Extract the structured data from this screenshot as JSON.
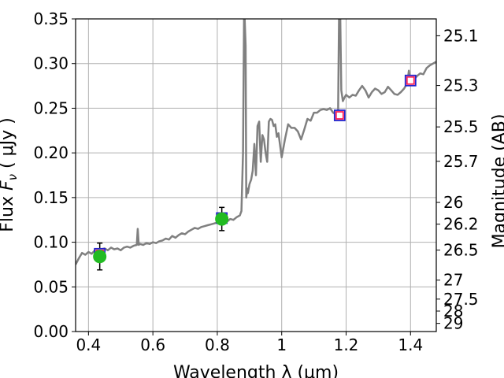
{
  "chart_data": {
    "type": "line",
    "title": "",
    "xlabel": "Wavelength  λ (μm)",
    "ylabel": "Flux  F_ν  ( μJy )",
    "ylabel_parts": {
      "prefix": "Flux  ",
      "symbol": "F",
      "subscript": "ν",
      "unit": "  ( μJy )"
    },
    "y2label": "Magnitude (AB)",
    "xlim": [
      0.36,
      1.48
    ],
    "ylim": [
      0.0,
      0.35
    ],
    "grid": true,
    "legend": "none",
    "x_ticks": [
      {
        "value": 0.4,
        "label": "0.4"
      },
      {
        "value": 0.6,
        "label": "0.6"
      },
      {
        "value": 0.8,
        "label": "0.8"
      },
      {
        "value": 1.0,
        "label": "1"
      },
      {
        "value": 1.2,
        "label": "1.2"
      },
      {
        "value": 1.4,
        "label": "1.4"
      }
    ],
    "y_ticks": [
      {
        "value": 0.0,
        "label": "0.00"
      },
      {
        "value": 0.05,
        "label": "0.05"
      },
      {
        "value": 0.1,
        "label": "0.10"
      },
      {
        "value": 0.15,
        "label": "0.15"
      },
      {
        "value": 0.2,
        "label": "0.20"
      },
      {
        "value": 0.25,
        "label": "0.25"
      },
      {
        "value": 0.3,
        "label": "0.30"
      },
      {
        "value": 0.35,
        "label": "0.35"
      }
    ],
    "y2_ticks": [
      {
        "mag": 25.1,
        "label": "25.1"
      },
      {
        "mag": 25.3,
        "label": "25.3"
      },
      {
        "mag": 25.5,
        "label": "25.5"
      },
      {
        "mag": 25.7,
        "label": "25.7"
      },
      {
        "mag": 26.0,
        "label": "26"
      },
      {
        "mag": 26.2,
        "label": "26.2"
      },
      {
        "mag": 26.5,
        "label": "26.5"
      },
      {
        "mag": 27.0,
        "label": "27"
      },
      {
        "mag": 27.5,
        "label": "27.5"
      },
      {
        "mag": 28.0,
        "label": "28"
      },
      {
        "mag": 29.0,
        "label": "29"
      }
    ],
    "colors": {
      "model": "#808080",
      "observed_fill": "#22bb22",
      "observed_edge": "#2222cc",
      "model_box_edge": "#2222cc",
      "model_box_inner": "#ff2255",
      "errorbar": "#000000",
      "grid": "#b0b0b0"
    },
    "series": [
      {
        "kind": "model_spectrum",
        "x": [
          0.36,
          0.37,
          0.38,
          0.39,
          0.4,
          0.41,
          0.42,
          0.43,
          0.44,
          0.45,
          0.46,
          0.47,
          0.48,
          0.49,
          0.5,
          0.51,
          0.52,
          0.53,
          0.54,
          0.55,
          0.553,
          0.556,
          0.56,
          0.57,
          0.58,
          0.59,
          0.6,
          0.61,
          0.62,
          0.63,
          0.64,
          0.65,
          0.66,
          0.67,
          0.68,
          0.69,
          0.7,
          0.71,
          0.72,
          0.73,
          0.74,
          0.75,
          0.76,
          0.77,
          0.78,
          0.79,
          0.8,
          0.81,
          0.82,
          0.83,
          0.84,
          0.85,
          0.86,
          0.87,
          0.875,
          0.88,
          0.883,
          0.885,
          0.888,
          0.89,
          0.893,
          0.895,
          0.9,
          0.905,
          0.91,
          0.915,
          0.92,
          0.925,
          0.93,
          0.935,
          0.94,
          0.945,
          0.95,
          0.955,
          0.96,
          0.965,
          0.97,
          0.975,
          0.98,
          0.985,
          0.99,
          1.0,
          1.01,
          1.02,
          1.03,
          1.04,
          1.05,
          1.06,
          1.07,
          1.08,
          1.09,
          1.1,
          1.11,
          1.12,
          1.13,
          1.14,
          1.15,
          1.16,
          1.17,
          1.175,
          1.178,
          1.18,
          1.182,
          1.185,
          1.19,
          1.195,
          1.2,
          1.21,
          1.22,
          1.23,
          1.24,
          1.25,
          1.26,
          1.27,
          1.28,
          1.29,
          1.3,
          1.31,
          1.32,
          1.33,
          1.34,
          1.35,
          1.36,
          1.37,
          1.38,
          1.39,
          1.395,
          1.4,
          1.41,
          1.42,
          1.43,
          1.44,
          1.45,
          1.46,
          1.47,
          1.48
        ],
        "y": [
          0.075,
          0.082,
          0.088,
          0.086,
          0.089,
          0.087,
          0.091,
          0.09,
          0.092,
          0.093,
          0.091,
          0.094,
          0.092,
          0.093,
          0.091,
          0.094,
          0.095,
          0.094,
          0.096,
          0.097,
          0.115,
          0.097,
          0.098,
          0.097,
          0.099,
          0.098,
          0.1,
          0.099,
          0.101,
          0.102,
          0.104,
          0.103,
          0.107,
          0.105,
          0.108,
          0.11,
          0.109,
          0.112,
          0.114,
          0.116,
          0.115,
          0.117,
          0.118,
          0.119,
          0.12,
          0.121,
          0.122,
          0.123,
          0.124,
          0.123,
          0.126,
          0.125,
          0.128,
          0.13,
          0.135,
          0.2,
          0.35,
          0.35,
          0.32,
          0.15,
          0.16,
          0.155,
          0.165,
          0.17,
          0.18,
          0.21,
          0.175,
          0.23,
          0.235,
          0.19,
          0.22,
          0.215,
          0.2,
          0.19,
          0.235,
          0.238,
          0.237,
          0.23,
          0.232,
          0.218,
          0.222,
          0.195,
          0.215,
          0.232,
          0.228,
          0.228,
          0.224,
          0.215,
          0.226,
          0.238,
          0.236,
          0.245,
          0.245,
          0.248,
          0.249,
          0.248,
          0.25,
          0.245,
          0.243,
          0.242,
          0.35,
          0.35,
          0.35,
          0.27,
          0.258,
          0.262,
          0.265,
          0.262,
          0.265,
          0.264,
          0.27,
          0.275,
          0.27,
          0.262,
          0.268,
          0.272,
          0.27,
          0.266,
          0.268,
          0.274,
          0.27,
          0.266,
          0.265,
          0.268,
          0.272,
          0.278,
          0.292,
          0.28,
          0.282,
          0.286,
          0.289,
          0.288,
          0.295,
          0.298,
          0.3,
          0.302
        ]
      },
      {
        "kind": "observed_photometry",
        "points": [
          {
            "x": 0.435,
            "y": 0.084,
            "yerr": 0.015
          },
          {
            "x": 0.814,
            "y": 0.126,
            "yerr": 0.013
          }
        ]
      },
      {
        "kind": "model_photometry",
        "points": [
          {
            "x": 0.435,
            "y": 0.087
          },
          {
            "x": 0.814,
            "y": 0.127
          },
          {
            "x": 1.18,
            "y": 0.242
          },
          {
            "x": 1.4,
            "y": 0.281
          }
        ]
      }
    ]
  }
}
